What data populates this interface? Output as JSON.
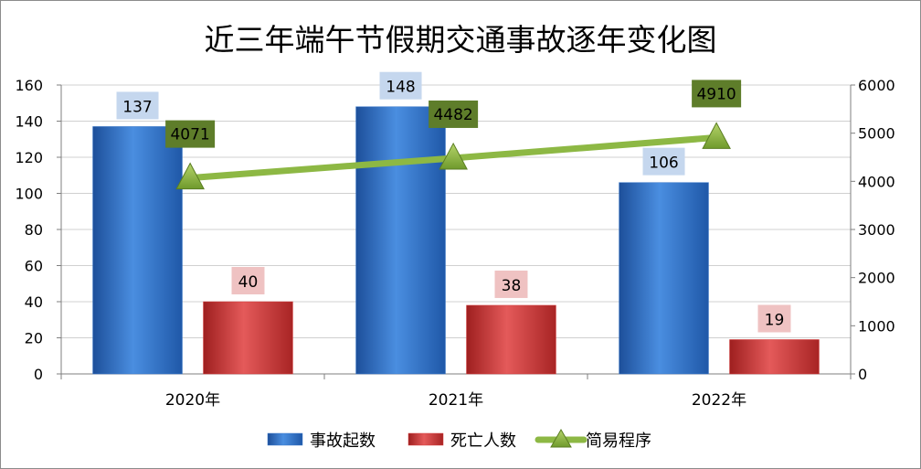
{
  "chart_data": {
    "type": "bar",
    "title": "近三年端午节假期交通事故逐年变化图",
    "categories": [
      "2020年",
      "2021年",
      "2022年"
    ],
    "series": [
      {
        "name": "事故起数",
        "type": "bar",
        "axis": "left",
        "color": "#3a78c9",
        "label_bg": "#c5d7ee",
        "values": [
          137,
          148,
          106
        ]
      },
      {
        "name": "死亡人数",
        "type": "bar",
        "axis": "left",
        "color": "#d23b3b",
        "label_bg": "#efc2c2",
        "values": [
          40,
          38,
          19
        ]
      },
      {
        "name": "简易程序",
        "type": "line",
        "axis": "right",
        "color": "#8db844",
        "label_bg": "#5e7d2a",
        "values": [
          4071,
          4482,
          4910
        ]
      }
    ],
    "y_left": {
      "min": 0,
      "max": 160,
      "ticks": [
        "0",
        "20",
        "40",
        "60",
        "80",
        "100",
        "120",
        "140",
        "160"
      ]
    },
    "y_right": {
      "min": 0,
      "max": 6000,
      "ticks": [
        "0",
        "1000",
        "2000",
        "3000",
        "4000",
        "5000",
        "6000"
      ]
    },
    "grid": true,
    "legend": "bottom"
  }
}
